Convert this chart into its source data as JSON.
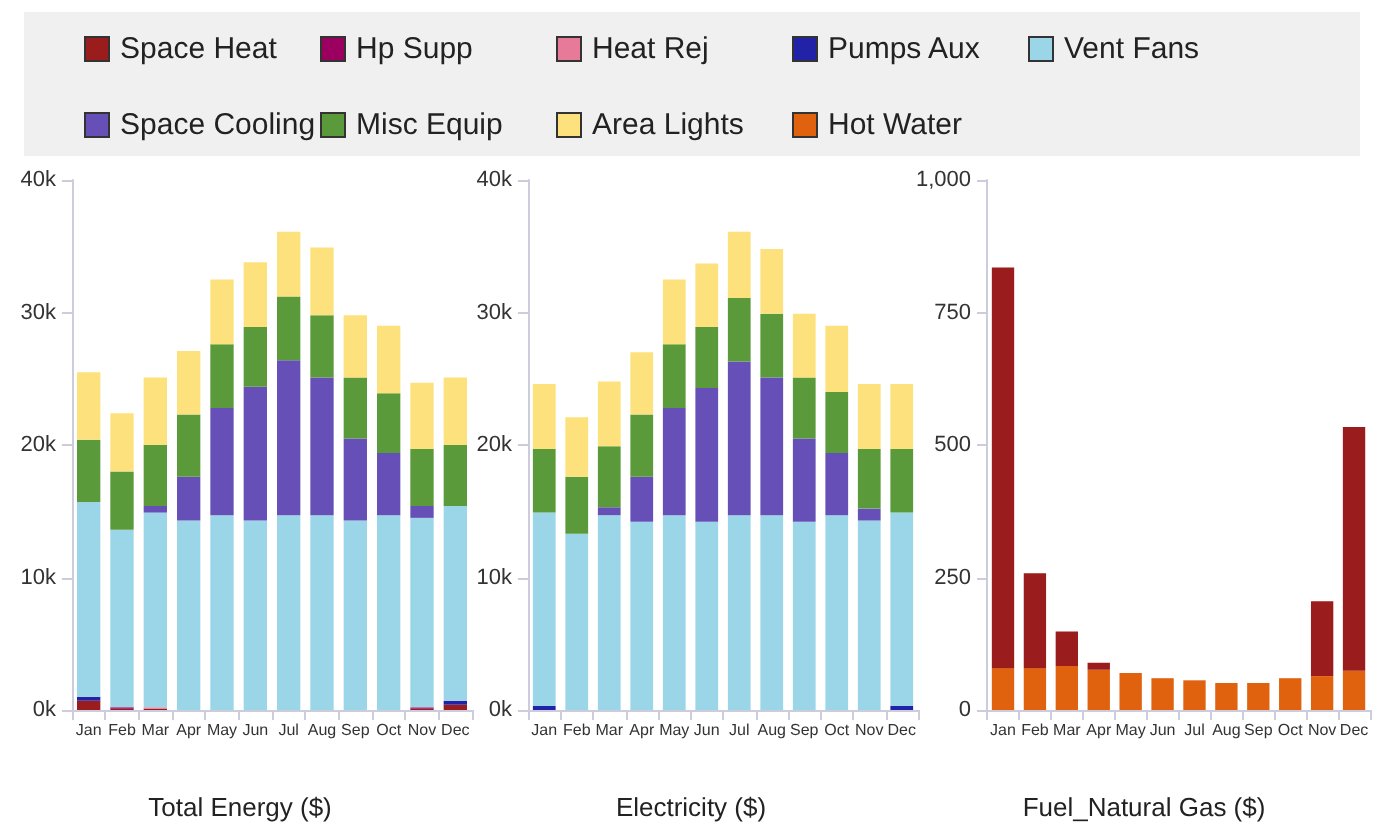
{
  "chart_data": [
    {
      "type": "bar",
      "stacked": true,
      "xlabel": "Total Energy ($)",
      "legend": "top",
      "grid": false,
      "categories": [
        "Jan",
        "Feb",
        "Mar",
        "Apr",
        "May",
        "Jun",
        "Jul",
        "Aug",
        "Sep",
        "Oct",
        "Nov",
        "Dec"
      ],
      "ylim": [
        0,
        40000
      ],
      "yticks": [
        {
          "value": 0,
          "label": "0k"
        },
        {
          "value": 10000,
          "label": "10k"
        },
        {
          "value": 20000,
          "label": "20k"
        },
        {
          "value": 30000,
          "label": "30k"
        },
        {
          "value": 40000,
          "label": "40k"
        }
      ],
      "series": [
        {
          "name": "Space Heat",
          "color": "#9a1c1c",
          "values": [
            700,
            100,
            100,
            null,
            null,
            null,
            null,
            null,
            null,
            null,
            100,
            400
          ]
        },
        {
          "name": "Hp Supp",
          "color": "#9b0060",
          "values": [
            null,
            100,
            null,
            null,
            null,
            null,
            null,
            null,
            null,
            null,
            100,
            null
          ]
        },
        {
          "name": "Heat Rej",
          "color": "#e67a98",
          "values": [
            null,
            null,
            100,
            null,
            null,
            null,
            null,
            null,
            null,
            null,
            null,
            null
          ]
        },
        {
          "name": "Pumps Aux",
          "color": "#2222a8",
          "values": [
            300,
            null,
            null,
            null,
            null,
            null,
            null,
            null,
            null,
            null,
            null,
            300
          ]
        },
        {
          "name": "Vent Fans",
          "color": "#9ad5e8",
          "values": [
            14700,
            13400,
            14700,
            14300,
            14700,
            14300,
            14700,
            14700,
            14300,
            14700,
            14300,
            14700
          ]
        },
        {
          "name": "Space Cooling",
          "color": "#6650b8",
          "values": [
            null,
            null,
            500,
            3300,
            8100,
            10100,
            11700,
            10400,
            6200,
            4700,
            900,
            null
          ]
        },
        {
          "name": "Misc Equip",
          "color": "#5a9a3a",
          "values": [
            4700,
            4400,
            4600,
            4700,
            4800,
            4500,
            4800,
            4700,
            4600,
            4500,
            4300,
            4600
          ]
        },
        {
          "name": "Area Lights",
          "color": "#fde17c",
          "values": [
            5100,
            4400,
            5100,
            4800,
            4900,
            4900,
            4900,
            5100,
            4700,
            5100,
            5000,
            5100
          ]
        }
      ]
    },
    {
      "type": "bar",
      "stacked": true,
      "xlabel": "Electricity ($)",
      "legend": "top",
      "grid": false,
      "categories": [
        "Jan",
        "Feb",
        "Mar",
        "Apr",
        "May",
        "Jun",
        "Jul",
        "Aug",
        "Sep",
        "Oct",
        "Nov",
        "Dec"
      ],
      "ylim": [
        0,
        40000
      ],
      "yticks": [
        {
          "value": 0,
          "label": "0k"
        },
        {
          "value": 10000,
          "label": "10k"
        },
        {
          "value": 20000,
          "label": "20k"
        },
        {
          "value": 30000,
          "label": "30k"
        },
        {
          "value": 40000,
          "label": "40k"
        }
      ],
      "series": [
        {
          "name": "Pumps Aux",
          "color": "#2222a8",
          "values": [
            300,
            null,
            null,
            null,
            null,
            null,
            null,
            null,
            null,
            null,
            null,
            300
          ]
        },
        {
          "name": "Vent Fans",
          "color": "#9ad5e8",
          "values": [
            14600,
            13300,
            14700,
            14200,
            14700,
            14200,
            14700,
            14700,
            14200,
            14700,
            14300,
            14600
          ]
        },
        {
          "name": "Space Cooling",
          "color": "#6650b8",
          "values": [
            null,
            null,
            600,
            3400,
            8100,
            10100,
            11600,
            10400,
            6300,
            4700,
            900,
            null
          ]
        },
        {
          "name": "Misc Equip",
          "color": "#5a9a3a",
          "values": [
            4800,
            4300,
            4600,
            4700,
            4800,
            4600,
            4800,
            4800,
            4600,
            4600,
            4500,
            4800
          ]
        },
        {
          "name": "Area Lights",
          "color": "#fde17c",
          "values": [
            4900,
            4500,
            4900,
            4700,
            4900,
            4800,
            5000,
            4900,
            4800,
            5000,
            4900,
            4900
          ]
        }
      ]
    },
    {
      "type": "bar",
      "stacked": true,
      "xlabel": "Fuel_Natural Gas ($)",
      "legend": "top",
      "grid": false,
      "categories": [
        "Jan",
        "Feb",
        "Mar",
        "Apr",
        "May",
        "Jun",
        "Jul",
        "Aug",
        "Sep",
        "Oct",
        "Nov",
        "Dec"
      ],
      "ylim": [
        0,
        1000
      ],
      "yticks": [
        0,
        250,
        500,
        750,
        {
          "value": 1000,
          "label": "1,000"
        }
      ],
      "series": [
        {
          "name": "Hot Water",
          "color": "#e0610e",
          "values": [
            79,
            79,
            83,
            76,
            70,
            60,
            56,
            51,
            51,
            60,
            64,
            74
          ]
        },
        {
          "name": "Space Heat",
          "color": "#9a1c1c",
          "values": [
            756,
            179,
            65,
            13,
            null,
            null,
            null,
            null,
            null,
            null,
            141,
            460
          ]
        }
      ]
    }
  ]
}
